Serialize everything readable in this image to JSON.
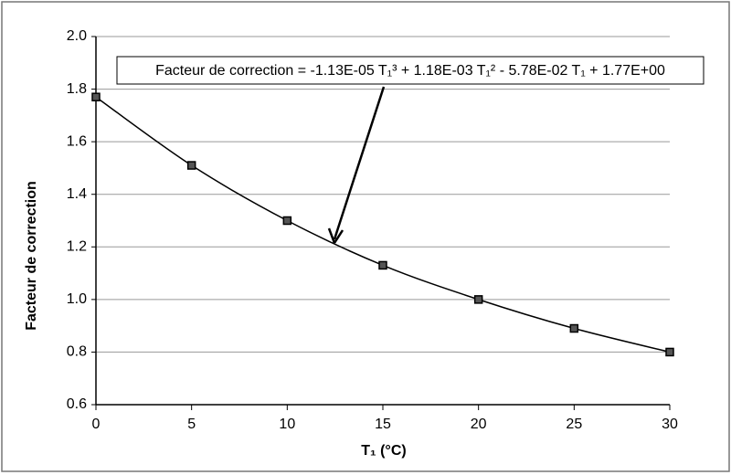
{
  "chart_data": {
    "type": "scatter",
    "annotation": "Facteur de correction = -1.13E-05 T₁³ + 1.18E-03 T₁² - 5.78E-02 T₁ + 1.77E+00",
    "x_label": "T₁ (°C)",
    "y_label": "Facteur de correction",
    "x": [
      0,
      5,
      10,
      15,
      20,
      25,
      30
    ],
    "values": [
      1.77,
      1.51,
      1.3,
      1.13,
      1.0,
      0.89,
      0.8
    ],
    "color": "#000000",
    "xlim": [
      0,
      30
    ],
    "xticks": [
      0,
      5,
      10,
      15,
      20,
      25,
      30
    ],
    "ylim": [
      0.6,
      2.0
    ],
    "yticks": [
      0.6,
      0.8,
      {
        "value": 1,
        "label": "1.0"
      },
      1.2,
      1.4,
      1.6,
      1.8,
      {
        "value": 2,
        "label": "2.0"
      }
    ],
    "grid": true,
    "trendline": true
  }
}
